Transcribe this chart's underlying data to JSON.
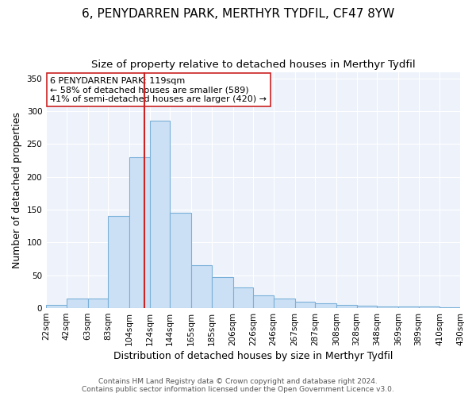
{
  "title": "6, PENYDARREN PARK, MERTHYR TYDFIL, CF47 8YW",
  "subtitle": "Size of property relative to detached houses in Merthyr Tydfil",
  "xlabel": "Distribution of detached houses by size in Merthyr Tydfil",
  "ylabel": "Number of detached properties",
  "footer_line1": "Contains HM Land Registry data © Crown copyright and database right 2024.",
  "footer_line2": "Contains public sector information licensed under the Open Government Licence v3.0.",
  "annotation_line1": "6 PENYDARREN PARK: 119sqm",
  "annotation_line2": "← 58% of detached houses are smaller (589)",
  "annotation_line3": "41% of semi-detached houses are larger (420) →",
  "bar_color": "#cce0f5",
  "bar_edge_color": "#7ab0d8",
  "vline_color": "#cc2222",
  "vline_x": 119,
  "categories": [
    "22sqm",
    "42sqm",
    "63sqm",
    "83sqm",
    "104sqm",
    "124sqm",
    "144sqm",
    "165sqm",
    "185sqm",
    "206sqm",
    "226sqm",
    "246sqm",
    "267sqm",
    "287sqm",
    "308sqm",
    "328sqm",
    "348sqm",
    "369sqm",
    "389sqm",
    "410sqm",
    "430sqm"
  ],
  "bin_edges": [
    22,
    42,
    63,
    83,
    104,
    124,
    144,
    165,
    185,
    206,
    226,
    246,
    267,
    287,
    308,
    328,
    348,
    369,
    389,
    410,
    430
  ],
  "bar_heights": [
    5,
    14,
    14,
    140,
    230,
    286,
    145,
    65,
    47,
    32,
    20,
    15,
    10,
    7,
    5,
    4,
    3,
    3,
    2,
    1,
    3
  ],
  "ylim": [
    0,
    360
  ],
  "yticks": [
    0,
    50,
    100,
    150,
    200,
    250,
    300,
    350
  ],
  "bg_color": "#ffffff",
  "plot_bg_color": "#eef3fb",
  "grid_color": "#ffffff",
  "title_fontsize": 11,
  "subtitle_fontsize": 9.5,
  "ylabel_fontsize": 9,
  "xlabel_fontsize": 9,
  "tick_fontsize": 7.5,
  "footer_fontsize": 6.5,
  "annot_fontsize": 8
}
